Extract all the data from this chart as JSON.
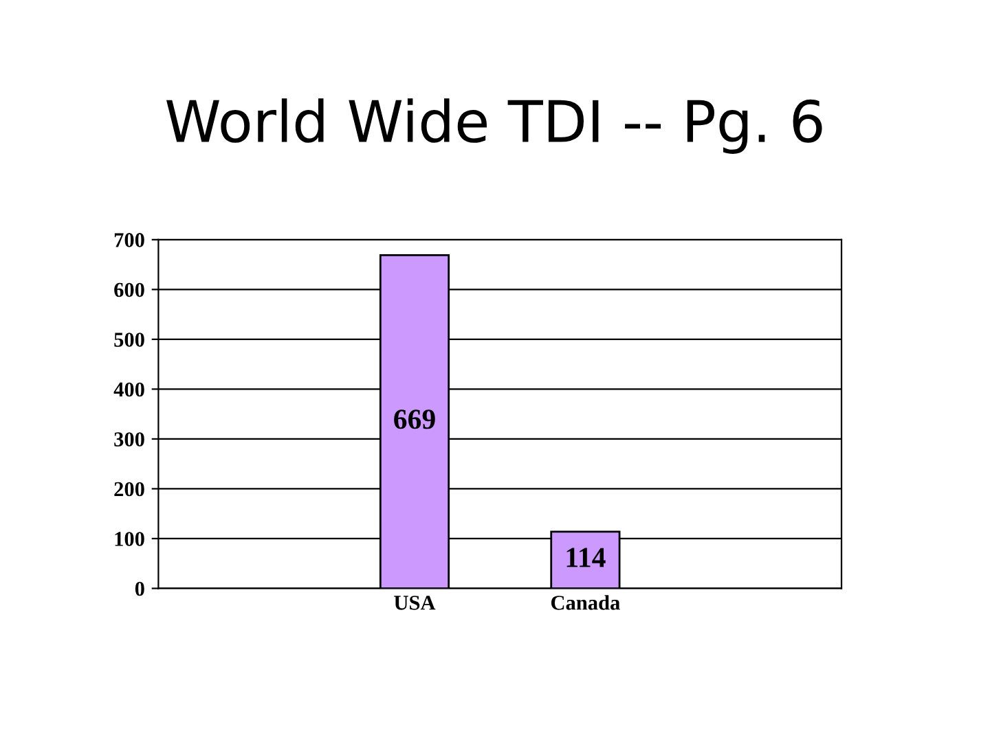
{
  "chart_data": {
    "type": "bar",
    "title": "World Wide TDI -- Pg. 6",
    "categories": [
      null,
      "USA",
      "Canada",
      null
    ],
    "values": [
      null,
      669,
      114,
      null
    ],
    "color": "#cc99ff",
    "ylim": [
      0,
      700
    ],
    "yticks": [
      0,
      100,
      200,
      300,
      400,
      500,
      600,
      700
    ],
    "grid": "y",
    "data_labels": true
  }
}
